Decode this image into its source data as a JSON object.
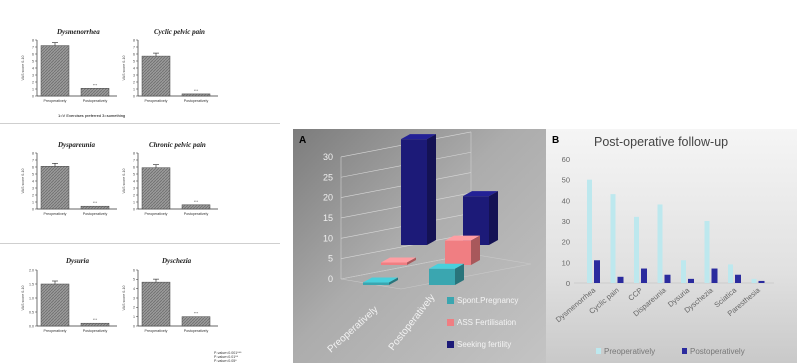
{
  "chart_data": [
    {
      "type": "bar",
      "title": "Dysmenorrhea",
      "categories": [
        "Preoperatively",
        "Postoperatively"
      ],
      "values": [
        7.2,
        1.1
      ],
      "ylabel": "VAS score 0-10",
      "ylim": [
        0,
        8
      ],
      "yticks": [
        "0",
        "1",
        "2",
        "3",
        "4",
        "5",
        "6",
        "7",
        "8"
      ],
      "sig": "***",
      "note": "1=V Exercises preferred 3=something"
    },
    {
      "type": "bar",
      "title": "Cyclic pelvic pain",
      "categories": [
        "Preoperatively",
        "Postoperatively"
      ],
      "values": [
        5.7,
        0.3
      ],
      "ylabel": "VAS score 0-10",
      "ylim": [
        0,
        8
      ],
      "yticks": [
        "0",
        "1",
        "2",
        "3",
        "4",
        "5",
        "6",
        "7",
        "8"
      ],
      "sig": "***"
    },
    {
      "type": "bar",
      "title": "Dyspareunia",
      "categories": [
        "Preoperatively",
        "Postoperatively"
      ],
      "values": [
        6.1,
        0.4
      ],
      "ylabel": "VAS score 0-10",
      "ylim": [
        0,
        8
      ],
      "yticks": [
        "0",
        "1",
        "2",
        "3",
        "4",
        "5",
        "6",
        "7",
        "8"
      ],
      "sig": "***"
    },
    {
      "type": "bar",
      "title": "Chronic pelvic pain",
      "categories": [
        "Preoperatively",
        "Postoperatively"
      ],
      "values": [
        5.9,
        0.6
      ],
      "ylabel": "VAS score 0-10",
      "ylim": [
        0,
        8
      ],
      "yticks": [
        "0",
        "1",
        "2",
        "3",
        "4",
        "5",
        "6",
        "7",
        "8"
      ],
      "sig": "***"
    },
    {
      "type": "bar",
      "title": "Dysuria",
      "categories": [
        "Preoperatively",
        "Postoperatively"
      ],
      "values": [
        1.5,
        0.1
      ],
      "ylabel": "VAS score 0-10",
      "ylim": [
        0,
        2
      ],
      "yticks": [
        "0.0",
        "0.5",
        "1.0",
        "1.5",
        "2.0"
      ],
      "sig": "***",
      "footnote": [
        "P-value<0.001***",
        "P-value<0.01**",
        "P-value<0.05*"
      ]
    },
    {
      "type": "bar",
      "title": "Dyschezia",
      "categories": [
        "Preoperatively",
        "Postoperatively"
      ],
      "values": [
        4.7,
        1.0
      ],
      "ylabel": "VAS score 0-10",
      "ylim": [
        0,
        6
      ],
      "yticks": [
        "0",
        "1",
        "2",
        "3",
        "4",
        "5",
        "6"
      ],
      "sig": "***"
    },
    {
      "type": "bar",
      "label": "A",
      "subtype": "3d",
      "categories": [
        "Preoperatively",
        "Postoperatively"
      ],
      "series": [
        {
          "name": "Spont.Pregnancy",
          "values": [
            0,
            4
          ],
          "color": "#3aa6b0"
        },
        {
          "name": "ASS Fertilisation",
          "values": [
            0,
            6
          ],
          "color": "#f07e82"
        },
        {
          "name": "Seeking fertility",
          "values": [
            26,
            12
          ],
          "color": "#1c1a78"
        }
      ],
      "ylim": [
        0,
        30
      ],
      "yticks": [
        "0",
        "5",
        "10",
        "15",
        "20",
        "25",
        "30"
      ],
      "legend": "bottom-right"
    },
    {
      "type": "bar",
      "label": "B",
      "title": "Post-operative follow-up",
      "categories": [
        "Dysmenorrhea",
        "Cyclic pain",
        "CCP",
        "Dispareunia",
        "Dysuria",
        "Dyschezia",
        "Sciatica",
        "Paresthesia"
      ],
      "series": [
        {
          "name": "Preoperatively",
          "values": [
            50,
            43,
            32,
            38,
            11,
            30,
            9,
            2
          ],
          "color": "#bde8ee"
        },
        {
          "name": "Postoperatively",
          "values": [
            11,
            3,
            7,
            4,
            2,
            7,
            4,
            1
          ],
          "color": "#2b2b9e"
        }
      ],
      "ylim": [
        0,
        60
      ],
      "yticks": [
        "0",
        "10",
        "20",
        "30",
        "40",
        "50",
        "60"
      ],
      "legend": "bottom"
    }
  ]
}
